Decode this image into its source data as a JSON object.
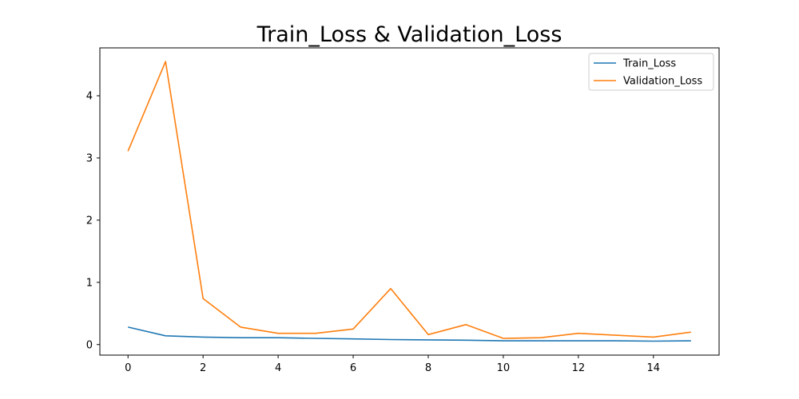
{
  "chart_data": {
    "type": "line",
    "title": "Train_Loss & Validation_Loss",
    "xlabel": "",
    "ylabel": "",
    "x": [
      0,
      1,
      2,
      3,
      4,
      5,
      6,
      7,
      8,
      9,
      10,
      11,
      12,
      13,
      14,
      15
    ],
    "xlim": [
      -0.75,
      15.75
    ],
    "ylim": [
      -0.17,
      4.77
    ],
    "xticks": [
      0,
      2,
      4,
      6,
      8,
      10,
      12,
      14
    ],
    "yticks": [
      0,
      1,
      2,
      3,
      4
    ],
    "grid": false,
    "legend_position": "upper right",
    "series": [
      {
        "name": "Train_Loss",
        "color": "#1f77b4",
        "values": [
          0.28,
          0.14,
          0.12,
          0.11,
          0.11,
          0.1,
          0.09,
          0.08,
          0.075,
          0.07,
          0.06,
          0.06,
          0.06,
          0.06,
          0.055,
          0.06
        ]
      },
      {
        "name": "Validation_Loss",
        "color": "#ff7f0e",
        "values": [
          3.11,
          4.55,
          0.74,
          0.28,
          0.18,
          0.18,
          0.25,
          0.9,
          0.16,
          0.32,
          0.1,
          0.11,
          0.18,
          0.15,
          0.12,
          0.2
        ]
      }
    ]
  }
}
